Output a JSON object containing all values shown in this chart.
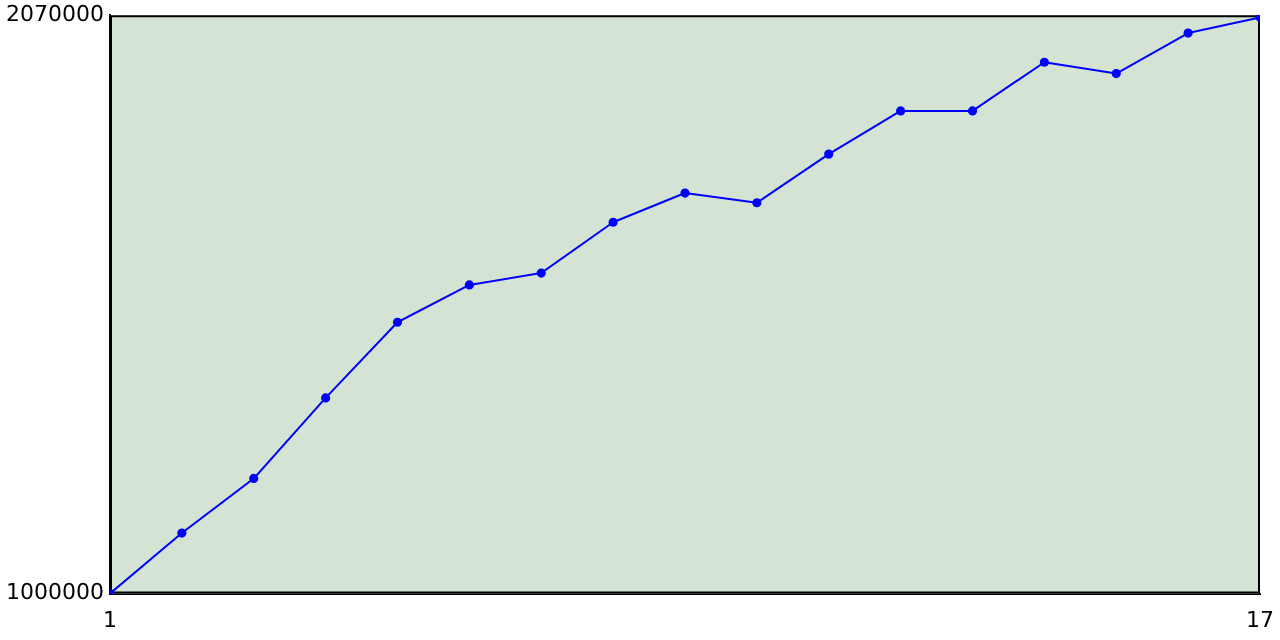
{
  "chart_data": {
    "type": "line",
    "x": [
      1,
      2,
      3,
      4,
      5,
      6,
      7,
      8,
      9,
      10,
      11,
      12,
      13,
      14,
      15,
      16,
      17
    ],
    "series": [
      {
        "color": "#0000ff",
        "values": [
          1000000,
          1112000,
          1213000,
          1362000,
          1502000,
          1571000,
          1593000,
          1687000,
          1741000,
          1723000,
          1813000,
          1893000,
          1893000,
          1983000,
          1962000,
          2037000,
          2066000
        ]
      }
    ],
    "xlim": [
      1,
      17
    ],
    "xticks": [
      1,
      17
    ],
    "ylim": [
      1000000,
      2070000
    ],
    "yticks": [
      1000000,
      2070000
    ],
    "grid": false,
    "legend": false,
    "marker": "circle",
    "line_style": "solid"
  }
}
